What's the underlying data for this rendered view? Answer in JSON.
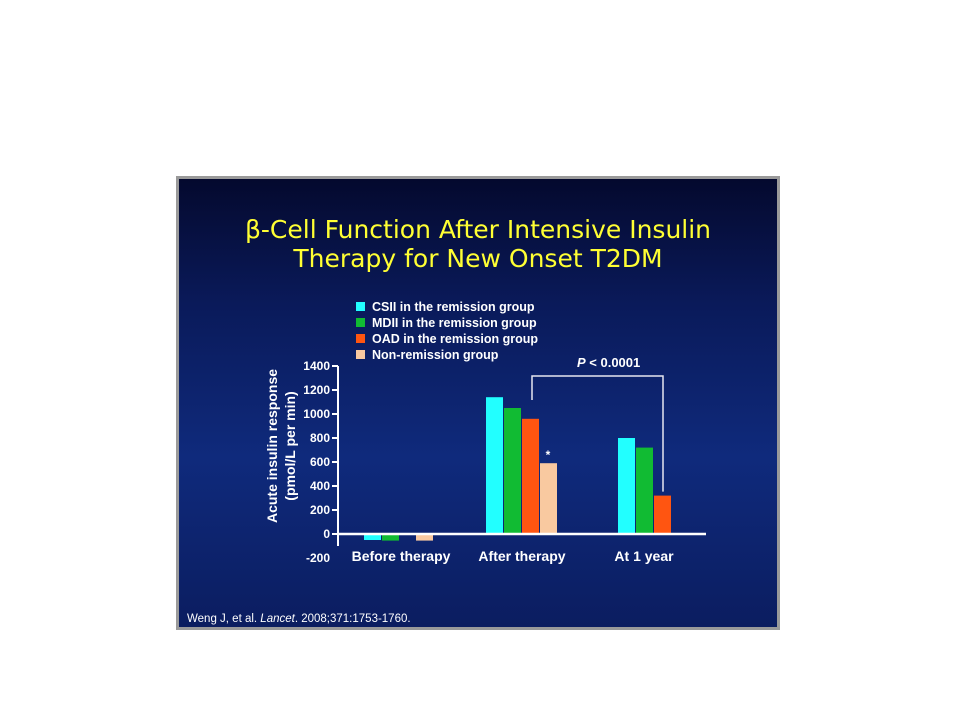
{
  "slide": {
    "title_line1": "β-Cell Function After Intensive Insulin",
    "title_line2": "Therapy for New Onset T2DM",
    "citation_authors": "Weng J, et al. ",
    "citation_journal": "Lancet",
    "citation_rest": ". 2008;371:1753-1760."
  },
  "chart_data": {
    "type": "bar",
    "ylabel_line1": "Acute insulin response",
    "ylabel_line2": "(pmol/L per min)",
    "ylim": [
      -200,
      1400
    ],
    "yticks": [
      -200,
      0,
      200,
      400,
      600,
      800,
      1000,
      1200,
      1400
    ],
    "categories": [
      "Before therapy",
      "After therapy",
      "At 1 year"
    ],
    "series": [
      {
        "name": "CSII in the remission group",
        "color": "#22ffff",
        "values": [
          -50,
          1140,
          800
        ]
      },
      {
        "name": "MDII in the remission group",
        "color": "#11bb33",
        "values": [
          -55,
          1050,
          720
        ]
      },
      {
        "name": "OAD in the remission group",
        "color": "#ff5511",
        "values": [
          -5,
          960,
          320
        ]
      },
      {
        "name": "Non-remission group",
        "color": "#f9c9a0",
        "values": [
          -55,
          590,
          null
        ]
      }
    ],
    "annotations": {
      "significance": "P < 0.0001",
      "p_italic": "P",
      "p_rest": " < 0.0001",
      "star": "*"
    },
    "legend_placement": "top-left",
    "grid": false
  }
}
